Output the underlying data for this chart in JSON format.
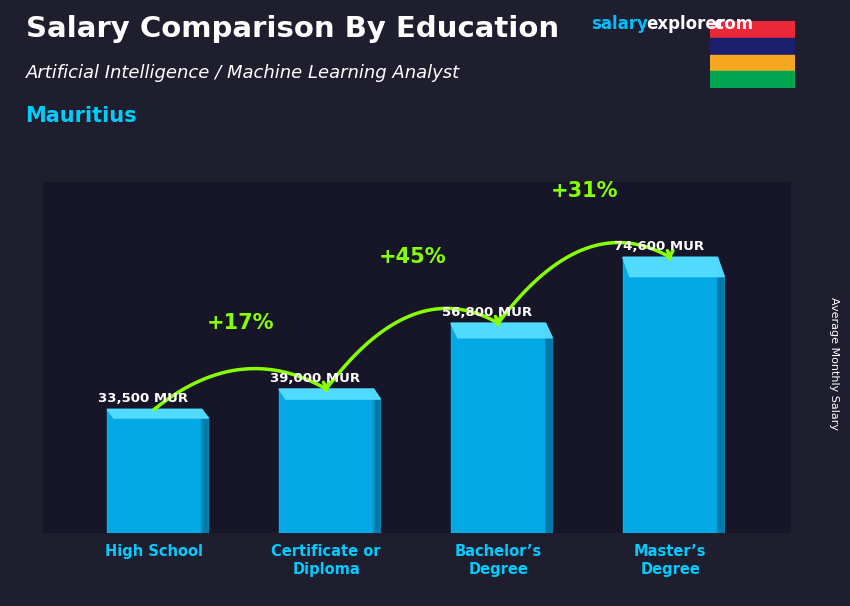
{
  "title": "Salary Comparison By Education",
  "subtitle_job": "Artificial Intelligence / Machine Learning Analyst",
  "subtitle_country": "Mauritius",
  "ylabel": "Average Monthly Salary",
  "categories": [
    "High School",
    "Certificate or\nDiploma",
    "Bachelor’s\nDegree",
    "Master’s\nDegree"
  ],
  "values": [
    33500,
    39000,
    56800,
    74600
  ],
  "value_labels": [
    "33,500 MUR",
    "39,000 MUR",
    "56,800 MUR",
    "74,600 MUR"
  ],
  "pct_labels": [
    "+17%",
    "+45%",
    "+31%"
  ],
  "bar_color": "#00BFFF",
  "bar_side_color": "#0088BB",
  "bar_top_color": "#55DDFF",
  "bar_alpha": 0.88,
  "title_color": "#FFFFFF",
  "subtitle_job_color": "#FFFFFF",
  "subtitle_country_color": "#00CCFF",
  "value_label_color": "#FFFFFF",
  "pct_color": "#88FF00",
  "arrow_color": "#88FF00",
  "xlabel_color": "#00CCFF",
  "ylabel_color": "#FFFFFF",
  "ylim": [
    0,
    95000
  ],
  "bar_width": 0.55,
  "bg_color": "#1e1e2e"
}
